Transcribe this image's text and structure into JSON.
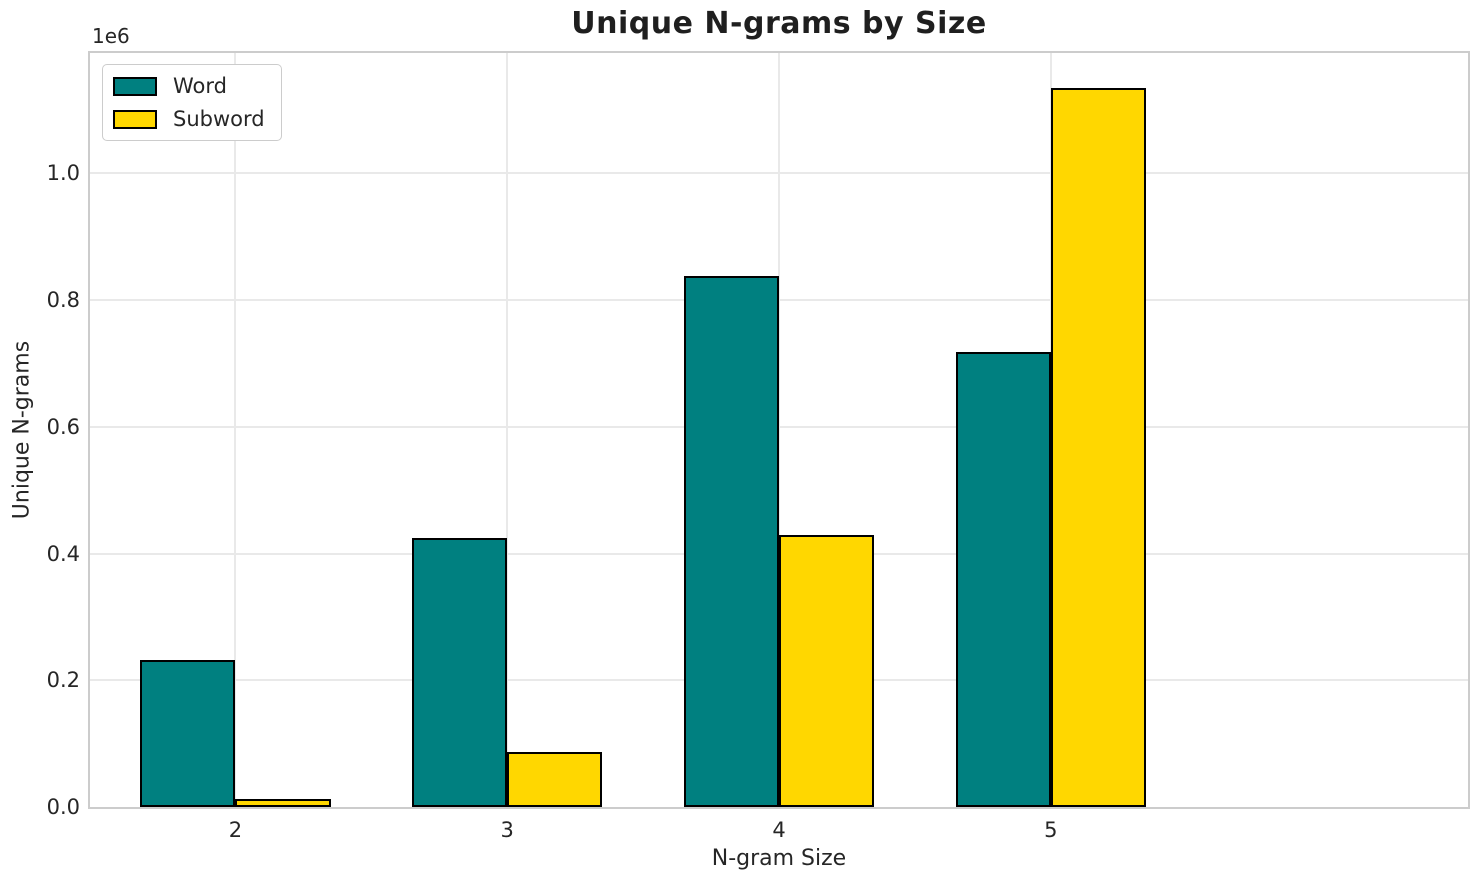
{
  "chart_data": {
    "type": "bar",
    "title": "Unique N-grams by Size",
    "xlabel": "N-gram Size",
    "ylabel": "Unique N-grams",
    "y_offset_label": "1e6",
    "categories": [
      "2",
      "3",
      "4",
      "5"
    ],
    "series": [
      {
        "name": "Word",
        "color": "#008080",
        "values": [
          232000,
          425000,
          838000,
          718000
        ]
      },
      {
        "name": "Subword",
        "color": "#FFD700",
        "values": [
          12000,
          87000,
          430000,
          1135000
        ]
      }
    ],
    "ylim": [
      0,
      1190000
    ],
    "yticks": [
      0,
      200000,
      400000,
      600000,
      800000,
      1000000
    ],
    "ytick_labels": [
      "0.0",
      "0.2",
      "0.4",
      "0.6",
      "0.8",
      "1.0"
    ],
    "bar_edge_color": "#000000",
    "grid": true,
    "legend_position": "upper left"
  }
}
